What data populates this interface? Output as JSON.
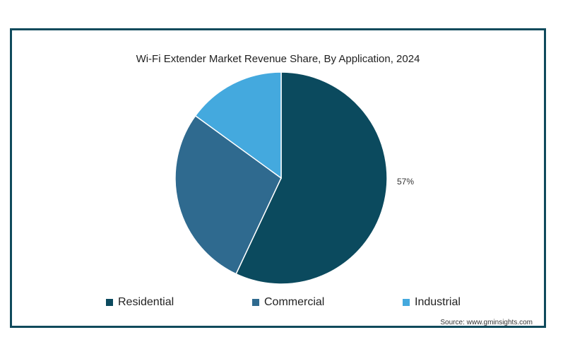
{
  "chart_data": {
    "type": "pie",
    "title": "Wi-Fi Extender Market Revenue Share, By Application, 2024",
    "categories": [
      "Residential",
      "Commercial",
      "Industrial"
    ],
    "values": [
      57,
      28,
      15
    ],
    "colors": [
      "#0b4a5e",
      "#2f6a8f",
      "#44a9de"
    ],
    "data_labels": [
      "57%",
      "",
      ""
    ],
    "legend": "bottom",
    "source": "Source: www.gminsights.com"
  }
}
